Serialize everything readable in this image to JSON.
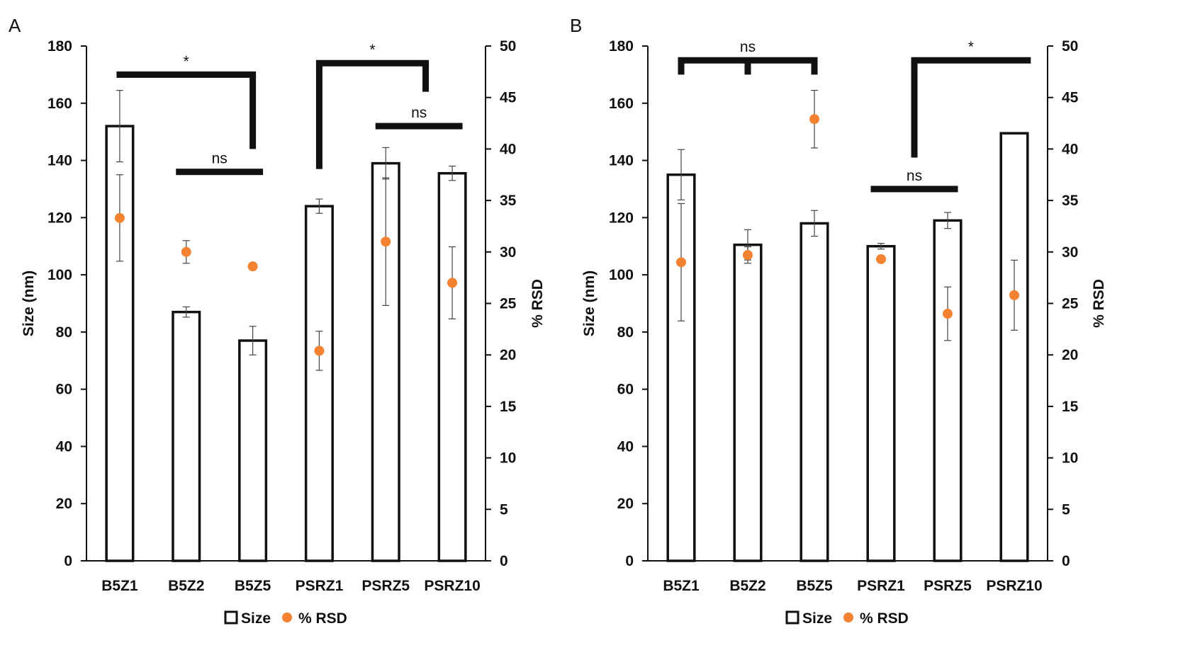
{
  "chart_data": [
    {
      "panel": "A",
      "type": "bar",
      "categories": [
        "B5Z1",
        "B5Z2",
        "B5Z5",
        "PSRZ1",
        "PSRZ5",
        "PSRZ10"
      ],
      "ylabel": "Size (nm)",
      "y2label": "% RSD",
      "ylim": [
        0,
        180
      ],
      "yticks": [
        0,
        20,
        40,
        60,
        80,
        100,
        120,
        140,
        160,
        180
      ],
      "y2lim": [
        0,
        50
      ],
      "y2ticks": [
        0,
        5,
        10,
        15,
        20,
        25,
        30,
        35,
        40,
        45,
        50
      ],
      "grid": false,
      "legend_position": "bottom",
      "series": [
        {
          "name": "Size",
          "kind": "bar",
          "axis": "left",
          "values": [
            152,
            87,
            77,
            124,
            139,
            135.5
          ],
          "errors": [
            12.5,
            1.8,
            5,
            2.5,
            5.5,
            2.5
          ]
        },
        {
          "name": "% RSD",
          "kind": "point",
          "axis": "right",
          "color": "#f58231",
          "values": [
            33.3,
            30,
            28.6,
            20.4,
            31,
            27
          ],
          "errors": [
            4.2,
            1.1,
            0,
            1.9,
            6.2,
            3.5
          ]
        }
      ],
      "comparisons": [
        {
          "label": "*",
          "from": 0,
          "to": 2,
          "level": 170,
          "drop_to": 144
        },
        {
          "label": "ns",
          "from": 1,
          "to": 2,
          "level": 136
        },
        {
          "label": "*",
          "from": 3,
          "to": 4.6,
          "level": 174,
          "rise_from": 137,
          "drop_to": 164
        },
        {
          "label": "ns",
          "from": 4,
          "to": 5,
          "level": 152
        }
      ]
    },
    {
      "panel": "B",
      "type": "bar",
      "categories": [
        "B5Z1",
        "B5Z2",
        "B5Z5",
        "PSRZ1",
        "PSRZ5",
        "PSRZ10"
      ],
      "ylabel": "Size (nm)",
      "y2label": "% RSD",
      "ylim": [
        0,
        180
      ],
      "yticks": [
        0,
        20,
        40,
        60,
        80,
        100,
        120,
        140,
        160,
        180
      ],
      "y2lim": [
        0,
        50
      ],
      "y2ticks": [
        0,
        5,
        10,
        15,
        20,
        25,
        30,
        35,
        40,
        45,
        50
      ],
      "grid": false,
      "legend_position": "bottom",
      "series": [
        {
          "name": "Size",
          "kind": "bar",
          "axis": "left",
          "values": [
            135,
            110.5,
            118,
            110,
            119,
            149.5
          ],
          "errors": [
            8.8,
            5.3,
            4.5,
            1,
            2.8,
            0
          ]
        },
        {
          "name": "% RSD",
          "kind": "point",
          "axis": "right",
          "color": "#f58231",
          "values": [
            29,
            29.7,
            42.9,
            29.3,
            24,
            25.8
          ],
          "errors": [
            5.7,
            0.8,
            2.8,
            0,
            2.6,
            3.4
          ]
        }
      ],
      "comparisons": [
        {
          "label": "ns",
          "from": 0,
          "to": 2,
          "level": 175,
          "drops": [
            0,
            1,
            2
          ],
          "drop_to": 170
        },
        {
          "label": "*",
          "from": 3.5,
          "to": 5.2,
          "level": 175,
          "rise_from": 141
        },
        {
          "label": "ns",
          "from": 3,
          "to": 4,
          "level": 130
        }
      ]
    }
  ]
}
